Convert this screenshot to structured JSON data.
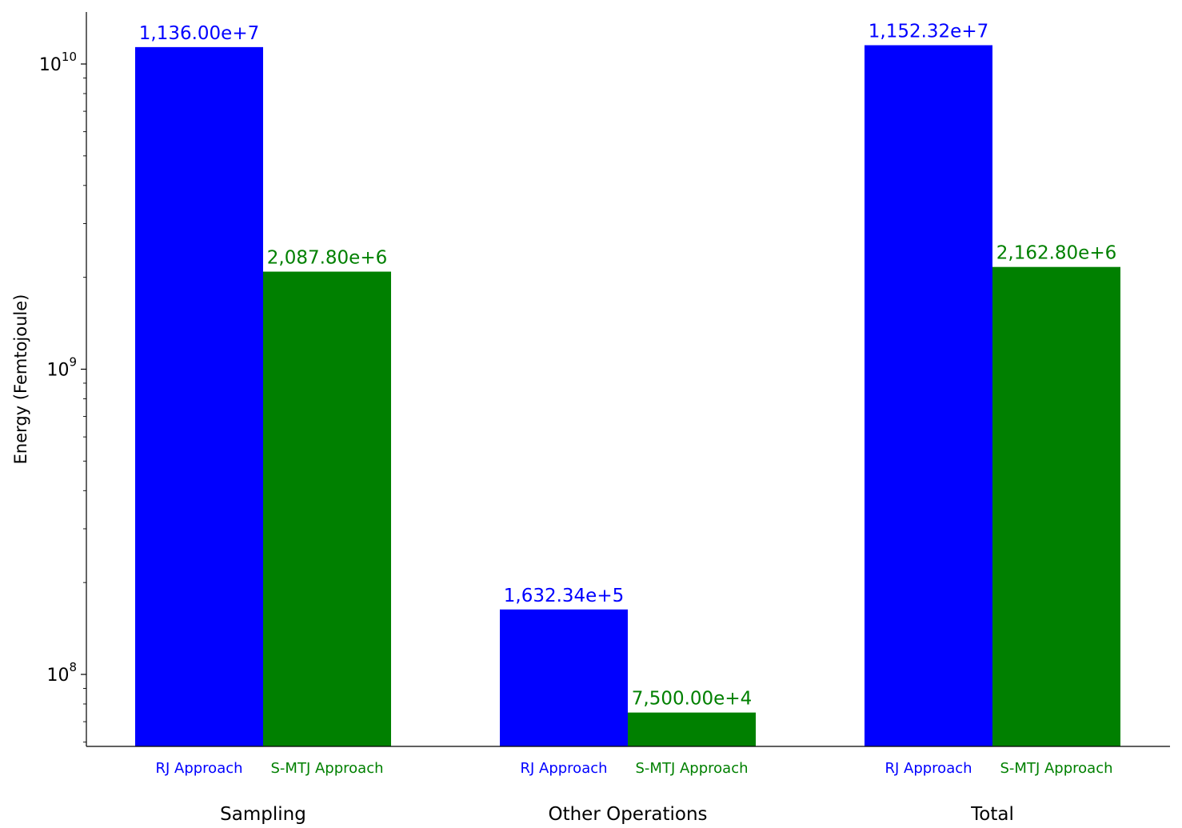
{
  "chart_data": {
    "type": "bar",
    "ylabel": "Energy (Femtojoule)",
    "yscale": "log",
    "ylim": [
      58000000,
      15500000000
    ],
    "yticks": [
      {
        "value": 100000000,
        "base": "10",
        "exp": "8"
      },
      {
        "value": 1000000000,
        "base": "10",
        "exp": "9"
      },
      {
        "value": 10000000000,
        "base": "10",
        "exp": "10"
      }
    ],
    "categories": [
      "Sampling",
      "Other Operations",
      "Total"
    ],
    "series": [
      {
        "name": "RJ Approach",
        "color": "#0000ff",
        "values": [
          11360000000,
          163234000,
          11523200000
        ],
        "labels": [
          "1,136.00e+7",
          "1,632.34e+5",
          "1,152.32e+7"
        ]
      },
      {
        "name": "S-MTJ Approach",
        "color": "#008000",
        "values": [
          2087800000,
          75000000,
          2162800000
        ],
        "labels": [
          "2,087.80e+6",
          "7,500.00e+4",
          "2,162.80e+6"
        ]
      }
    ]
  }
}
